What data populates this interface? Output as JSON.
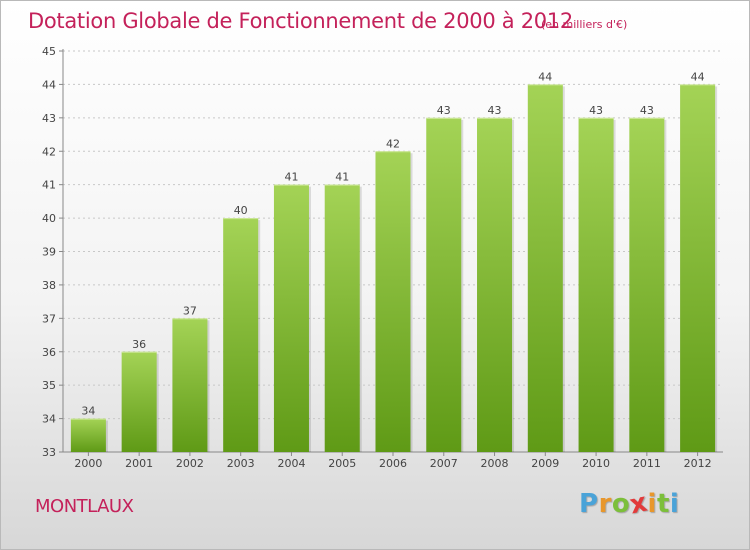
{
  "title": "Dotation Globale de Fonctionnement de 2000 à 2012",
  "unit": "(en milliers d'€)",
  "commune": "MONTLAUX",
  "logo": {
    "letters": [
      "P",
      "r",
      "o",
      "x",
      "i",
      "t",
      "i"
    ],
    "colors": [
      "#4aa3d8",
      "#e8972c",
      "#7cbf3a",
      "#e23a3a",
      "#e8972c",
      "#7cbf3a",
      "#4aa3d8"
    ]
  },
  "colors": {
    "bar_top": "#a4d356",
    "bar_bottom": "#5f9a16",
    "title": "#c4215a",
    "grid": "#c8c8c8"
  },
  "chart_data": {
    "type": "bar",
    "title": "Dotation Globale de Fonctionnement de 2000 à 2012",
    "subtitle": "(en milliers d'€)",
    "xlabel": "",
    "ylabel": "",
    "categories": [
      "2000",
      "2001",
      "2002",
      "2003",
      "2004",
      "2005",
      "2006",
      "2007",
      "2008",
      "2009",
      "2010",
      "2011",
      "2012"
    ],
    "values": [
      34,
      36,
      37,
      40,
      41,
      41,
      42,
      43,
      43,
      44,
      43,
      43,
      44
    ],
    "data_labels": [
      "34",
      "36",
      "37",
      "40",
      "41",
      "41",
      "42",
      "43",
      "43",
      "44",
      "43",
      "43",
      "44"
    ],
    "ylim": [
      33,
      45
    ],
    "yticks": [
      "33",
      "34",
      "35",
      "36",
      "37",
      "38",
      "39",
      "40",
      "41",
      "42",
      "43",
      "44",
      "45"
    ],
    "grid": true
  }
}
